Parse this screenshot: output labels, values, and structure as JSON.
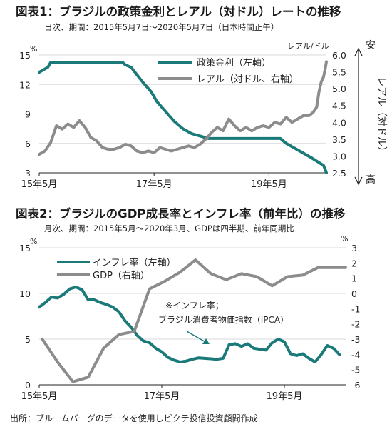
{
  "colors": {
    "teal": "#1a7a7a",
    "gray": "#8c8c8c",
    "grid": "#d9d9d9"
  },
  "chart_data": [
    {
      "type": "line",
      "title": "図表1：ブラジルの政策金利とレアル（対ドル）レートの推移",
      "subtitle": "日次、期間：2015年5月7日～2020年5月7日（日本時間正午）",
      "left_unit": "%",
      "right_unit": "レアル/ドル",
      "ylim_left": [
        3,
        15
      ],
      "ylim_right": [
        2.5,
        6.0
      ],
      "yticks_left": [
        "3",
        "6",
        "9",
        "12",
        "15"
      ],
      "yticks_right": [
        "2.5",
        "3.0",
        "3.5",
        "4.0",
        "4.5",
        "5.0",
        "5.5",
        "6.0"
      ],
      "x_range": [
        2015.35,
        2020.35
      ],
      "xticks": [
        {
          "label": "15年5月",
          "x": 2015.35
        },
        {
          "label": "17年5月",
          "x": 2017.35
        },
        {
          "label": "19年5月",
          "x": 2019.35
        }
      ],
      "side_top": "安",
      "side_mid": "レアル（対ドル）",
      "side_bottom": "高",
      "grid": true,
      "legend_position": "top-right",
      "series": [
        {
          "name": "政策金利（左軸）",
          "axis": "left",
          "color": "#1a7a7a",
          "x": [
            2015.35,
            2015.5,
            2015.55,
            2016.8,
            2016.85,
            2016.95,
            2017.05,
            2017.15,
            2017.3,
            2017.4,
            2017.55,
            2017.7,
            2017.85,
            2018.0,
            2018.15,
            2018.3,
            2019.55,
            2019.65,
            2019.8,
            2019.95,
            2020.1,
            2020.3,
            2020.35
          ],
          "y": [
            13.25,
            13.75,
            14.25,
            14.25,
            14.0,
            13.75,
            13.0,
            12.25,
            11.25,
            10.25,
            9.25,
            8.25,
            7.5,
            7.0,
            6.75,
            6.5,
            6.5,
            6.0,
            5.5,
            5.0,
            4.5,
            3.75,
            3.0
          ]
        },
        {
          "name": "レアル（対ドル、右軸）",
          "axis": "right",
          "color": "#8c8c8c",
          "x": [
            2015.35,
            2015.45,
            2015.55,
            2015.65,
            2015.75,
            2015.85,
            2015.95,
            2016.05,
            2016.15,
            2016.25,
            2016.35,
            2016.45,
            2016.55,
            2016.65,
            2016.75,
            2016.85,
            2016.95,
            2017.05,
            2017.15,
            2017.25,
            2017.35,
            2017.45,
            2017.55,
            2017.65,
            2017.75,
            2017.85,
            2017.95,
            2018.05,
            2018.15,
            2018.25,
            2018.35,
            2018.45,
            2018.55,
            2018.65,
            2018.75,
            2018.85,
            2018.95,
            2019.05,
            2019.15,
            2019.25,
            2019.35,
            2019.45,
            2019.55,
            2019.65,
            2019.75,
            2019.85,
            2019.95,
            2020.05,
            2020.12,
            2020.18,
            2020.22,
            2020.26,
            2020.3,
            2020.33,
            2020.35
          ],
          "y": [
            3.05,
            3.15,
            3.4,
            3.9,
            3.8,
            3.95,
            3.85,
            4.05,
            3.85,
            3.55,
            3.45,
            3.25,
            3.2,
            3.2,
            3.25,
            3.35,
            3.3,
            3.15,
            3.1,
            3.15,
            3.1,
            3.25,
            3.2,
            3.15,
            3.2,
            3.25,
            3.3,
            3.25,
            3.35,
            3.5,
            3.7,
            3.85,
            3.75,
            4.1,
            3.9,
            3.75,
            3.85,
            3.75,
            3.85,
            3.9,
            3.85,
            4.0,
            3.95,
            4.15,
            4.0,
            4.1,
            4.2,
            4.2,
            4.3,
            4.45,
            4.9,
            5.2,
            5.35,
            5.6,
            5.8
          ]
        }
      ]
    },
    {
      "type": "line",
      "title": "図表2：ブラジルのGDP成長率とインフレ率（前年比）の推移",
      "subtitle": "月次、期間：2015年5月～2020年3月、GDPは四半期、前年同期比",
      "left_unit": "%",
      "right_unit": "%",
      "ylim_left": [
        0,
        15
      ],
      "ylim_right": [
        -6,
        3
      ],
      "yticks_left": [
        "0",
        "5",
        "10",
        "15"
      ],
      "yticks_right": [
        "-6",
        "-5",
        "-4",
        "-3",
        "-2",
        "-1",
        "0",
        "1",
        "2",
        "3"
      ],
      "x_range": [
        2015.35,
        2020.35
      ],
      "xticks": [
        {
          "label": "15年5月",
          "x": 2015.35
        },
        {
          "label": "17年5月",
          "x": 2017.35
        },
        {
          "label": "19年5月",
          "x": 2019.35
        }
      ],
      "grid": true,
      "legend_position": "top-left",
      "annotation": [
        "※インフレ率；",
        "ブラジル消費者物価指数（IPCA）"
      ],
      "series": [
        {
          "name": "インフレ率（左軸）",
          "axis": "left",
          "color": "#1a7a7a",
          "x": [
            2015.35,
            2015.45,
            2015.55,
            2015.65,
            2015.75,
            2015.85,
            2015.95,
            2016.05,
            2016.15,
            2016.25,
            2016.35,
            2016.45,
            2016.55,
            2016.65,
            2016.75,
            2016.85,
            2016.95,
            2017.05,
            2017.15,
            2017.25,
            2017.35,
            2017.45,
            2017.55,
            2017.65,
            2017.75,
            2017.85,
            2017.95,
            2018.05,
            2018.15,
            2018.25,
            2018.35,
            2018.45,
            2018.55,
            2018.65,
            2018.75,
            2018.85,
            2018.95,
            2019.05,
            2019.15,
            2019.25,
            2019.35,
            2019.45,
            2019.55,
            2019.65,
            2019.75,
            2019.85,
            2019.95,
            2020.05,
            2020.15,
            2020.25
          ],
          "y": [
            8.5,
            9.0,
            9.6,
            9.5,
            9.9,
            10.5,
            10.7,
            10.4,
            9.3,
            9.3,
            9.0,
            8.8,
            8.5,
            8.0,
            7.0,
            6.3,
            5.4,
            4.8,
            4.6,
            4.0,
            3.6,
            3.0,
            2.7,
            2.5,
            2.6,
            2.8,
            2.95,
            2.9,
            2.85,
            2.8,
            2.9,
            4.4,
            4.5,
            4.2,
            4.5,
            4.0,
            3.9,
            3.8,
            4.6,
            5.0,
            4.7,
            3.4,
            3.2,
            3.4,
            2.9,
            2.5,
            3.3,
            4.3,
            4.0,
            3.3
          ]
        },
        {
          "name": "GDP（右軸）",
          "axis": "right",
          "color": "#8c8c8c",
          "x": [
            2015.4,
            2015.65,
            2015.9,
            2016.15,
            2016.4,
            2016.65,
            2016.9,
            2017.15,
            2017.4,
            2017.65,
            2017.9,
            2018.15,
            2018.4,
            2018.65,
            2018.9,
            2019.15,
            2019.4,
            2019.65,
            2019.9,
            2020.15,
            2020.35
          ],
          "y": [
            -3.0,
            -4.5,
            -5.8,
            -5.5,
            -3.6,
            -2.7,
            -2.5,
            0.3,
            0.8,
            1.4,
            2.2,
            1.3,
            0.9,
            1.3,
            1.1,
            0.5,
            1.1,
            1.2,
            1.7,
            1.7,
            1.7
          ]
        }
      ]
    }
  ],
  "source": "出所：ブルームバーグのデータを使用しピクテ投信投資顧問作成"
}
